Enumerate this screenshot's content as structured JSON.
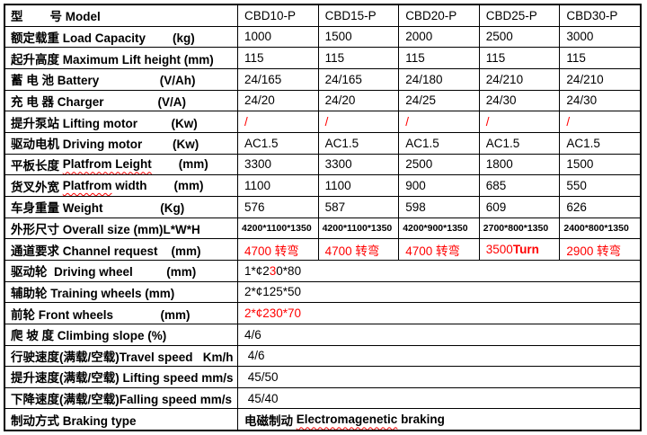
{
  "colors": {
    "red": "#ff0000",
    "text": "#000000",
    "border": "#000000",
    "background": "#ffffff"
  },
  "table": {
    "column_count": 6,
    "rows": [
      {
        "name": "model",
        "label": [
          {
            "t": "型        号 Model"
          }
        ],
        "cells": [
          {
            "parts": [
              {
                "t": "CBD10-P"
              }
            ]
          },
          {
            "parts": [
              {
                "t": "CBD15-P"
              }
            ]
          },
          {
            "parts": [
              {
                "t": "CBD20-P"
              }
            ]
          },
          {
            "parts": [
              {
                "t": "CBD25-P"
              }
            ]
          },
          {
            "parts": [
              {
                "t": "CBD30-P"
              }
            ]
          }
        ]
      },
      {
        "name": "load-capacity",
        "label": [
          {
            "t": "额定载重 Load Capacity        (kg)"
          }
        ],
        "cells": [
          {
            "parts": [
              {
                "t": "1000"
              }
            ]
          },
          {
            "parts": [
              {
                "t": "1500"
              }
            ]
          },
          {
            "parts": [
              {
                "t": "2000"
              }
            ]
          },
          {
            "parts": [
              {
                "t": "2500"
              }
            ]
          },
          {
            "parts": [
              {
                "t": "3000"
              }
            ]
          }
        ]
      },
      {
        "name": "max-lift-height",
        "label": [
          {
            "t": "起升高度 Maximum Lift height (mm)"
          }
        ],
        "cells": [
          {
            "parts": [
              {
                "t": "115"
              }
            ]
          },
          {
            "parts": [
              {
                "t": "115"
              }
            ]
          },
          {
            "parts": [
              {
                "t": "115"
              }
            ]
          },
          {
            "parts": [
              {
                "t": "115"
              }
            ]
          },
          {
            "parts": [
              {
                "t": "115"
              }
            ]
          }
        ]
      },
      {
        "name": "battery",
        "label": [
          {
            "t": "蓄 电 池 Battery                  (V/Ah)"
          }
        ],
        "cells": [
          {
            "parts": [
              {
                "t": "24/165"
              }
            ]
          },
          {
            "parts": [
              {
                "t": "24/165"
              }
            ]
          },
          {
            "parts": [
              {
                "t": "24/180"
              }
            ]
          },
          {
            "parts": [
              {
                "t": "24/210"
              }
            ]
          },
          {
            "parts": [
              {
                "t": "24/210"
              }
            ]
          }
        ]
      },
      {
        "name": "charger",
        "label": [
          {
            "t": "充 电 器 Charger                (V/A)"
          }
        ],
        "cells": [
          {
            "parts": [
              {
                "t": "24/20"
              }
            ]
          },
          {
            "parts": [
              {
                "t": "24/20"
              }
            ]
          },
          {
            "parts": [
              {
                "t": "24/25"
              }
            ]
          },
          {
            "parts": [
              {
                "t": "24/30"
              }
            ]
          },
          {
            "parts": [
              {
                "t": "24/30"
              }
            ]
          }
        ]
      },
      {
        "name": "lifting-motor",
        "label": [
          {
            "t": "提升泵站 Lifting motor          (Kw)"
          }
        ],
        "cells": [
          {
            "parts": [
              {
                "t": "/",
                "red": true
              }
            ]
          },
          {
            "parts": [
              {
                "t": "/",
                "red": true
              }
            ]
          },
          {
            "parts": [
              {
                "t": "/",
                "red": true
              }
            ]
          },
          {
            "parts": [
              {
                "t": "/",
                "red": true
              }
            ]
          },
          {
            "parts": [
              {
                "t": "/",
                "red": true
              }
            ]
          }
        ]
      },
      {
        "name": "driving-motor",
        "label": [
          {
            "t": "驱动电机 Driving motor         (Kw)"
          }
        ],
        "cells": [
          {
            "parts": [
              {
                "t": "AC1.5"
              }
            ]
          },
          {
            "parts": [
              {
                "t": "AC1.5"
              }
            ]
          },
          {
            "parts": [
              {
                "t": "AC1.5"
              }
            ]
          },
          {
            "parts": [
              {
                "t": "AC1.5"
              }
            ]
          },
          {
            "parts": [
              {
                "t": "AC1.5"
              }
            ]
          }
        ]
      },
      {
        "name": "platform-length",
        "label": [
          {
            "t": "平板长度 "
          },
          {
            "t": "Platfrom Leight",
            "wavy": true
          },
          {
            "t": "        (mm)"
          }
        ],
        "cells": [
          {
            "parts": [
              {
                "t": "3300"
              }
            ]
          },
          {
            "parts": [
              {
                "t": "3300"
              }
            ]
          },
          {
            "parts": [
              {
                "t": "2500"
              }
            ]
          },
          {
            "parts": [
              {
                "t": "1800"
              }
            ]
          },
          {
            "parts": [
              {
                "t": "1500"
              }
            ]
          }
        ]
      },
      {
        "name": "platform-width",
        "label": [
          {
            "t": "货叉外宽 "
          },
          {
            "t": "Platfrom",
            "wavy": true
          },
          {
            "t": " width        (mm)"
          }
        ],
        "cells": [
          {
            "parts": [
              {
                "t": "1100"
              }
            ]
          },
          {
            "parts": [
              {
                "t": "1100"
              }
            ]
          },
          {
            "parts": [
              {
                "t": "900"
              }
            ]
          },
          {
            "parts": [
              {
                "t": "685"
              }
            ]
          },
          {
            "parts": [
              {
                "t": "550"
              }
            ]
          }
        ]
      },
      {
        "name": "weight",
        "label": [
          {
            "t": "车身重量 Weight                 (Kg)"
          }
        ],
        "cells": [
          {
            "parts": [
              {
                "t": "576"
              }
            ]
          },
          {
            "parts": [
              {
                "t": "587"
              }
            ]
          },
          {
            "parts": [
              {
                "t": "598"
              }
            ]
          },
          {
            "parts": [
              {
                "t": "609"
              }
            ]
          },
          {
            "parts": [
              {
                "t": "626"
              }
            ]
          }
        ]
      },
      {
        "name": "overall-size",
        "label": [
          {
            "t": "外形尺寸 Overall size (mm)L*W*H"
          }
        ],
        "small": true,
        "cells": [
          {
            "parts": [
              {
                "t": "4200*1100*1350"
              }
            ]
          },
          {
            "parts": [
              {
                "t": "4200*1100*1350"
              }
            ]
          },
          {
            "parts": [
              {
                "t": "4200*900*1350"
              }
            ]
          },
          {
            "parts": [
              {
                "t": "2700*800*1350"
              }
            ]
          },
          {
            "parts": [
              {
                "t": "2400*800*1350"
              }
            ]
          }
        ]
      },
      {
        "name": "channel-request",
        "label": [
          {
            "t": "通道要求 Channel request    (mm)"
          }
        ],
        "cells": [
          {
            "parts": [
              {
                "t": "4700 转弯",
                "red": true
              }
            ]
          },
          {
            "parts": [
              {
                "t": "4700 转弯",
                "red": true
              }
            ]
          },
          {
            "parts": [
              {
                "t": "4700 转弯",
                "red": true
              }
            ]
          },
          {
            "parts": [
              {
                "t": "3500",
                "red": true
              },
              {
                "t": "Turn",
                "red": true,
                "bold": true
              }
            ]
          },
          {
            "parts": [
              {
                "t": "2900 转弯",
                "red": true
              }
            ]
          }
        ]
      },
      {
        "name": "driving-wheel",
        "label": [
          {
            "t": "驱动轮  Driving wheel          (mm)"
          }
        ],
        "cells": [
          {
            "span": 5,
            "parts": [
              {
                "t": "1*¢2"
              },
              {
                "t": "3",
                "red": true
              },
              {
                "t": "0*80"
              }
            ]
          }
        ]
      },
      {
        "name": "training-wheels",
        "label": [
          {
            "t": "辅助轮 Training wheels (mm)"
          }
        ],
        "cells": [
          {
            "span": 5,
            "parts": [
              {
                "t": "2*¢125*50"
              }
            ]
          }
        ]
      },
      {
        "name": "front-wheels",
        "label": [
          {
            "t": "前轮 Front wheels              (mm)"
          }
        ],
        "cells": [
          {
            "span": 5,
            "parts": [
              {
                "t": "2*¢230*70",
                "red": true
              }
            ]
          }
        ]
      },
      {
        "name": "climbing-slope",
        "label": [
          {
            "t": "爬 坡 度 Climbing slope (%)"
          }
        ],
        "cells": [
          {
            "span": 5,
            "parts": [
              {
                "t": "4/6"
              }
            ]
          }
        ]
      },
      {
        "name": "travel-speed",
        "label": [
          {
            "t": "行驶速度(满载/空载)Travel speed   Km/h"
          }
        ],
        "cells": [
          {
            "span": 5,
            "parts": [
              {
                "t": " 4/6"
              }
            ]
          }
        ]
      },
      {
        "name": "lifting-speed",
        "label": [
          {
            "t": "提升速度(满载/空载) Lifting speed mm/s"
          }
        ],
        "cells": [
          {
            "span": 5,
            "parts": [
              {
                "t": " 45/50"
              }
            ]
          }
        ]
      },
      {
        "name": "falling-speed",
        "label": [
          {
            "t": "下降速度(满载/空载)Falling speed mm/s"
          }
        ],
        "cells": [
          {
            "span": 5,
            "parts": [
              {
                "t": " 45/40"
              }
            ]
          }
        ]
      },
      {
        "name": "braking-type",
        "label": [
          {
            "t": "制动方式 Braking type"
          }
        ],
        "cells": [
          {
            "span": 5,
            "bold": true,
            "parts": [
              {
                "t": "电磁制动 "
              },
              {
                "t": "Electromagenetic",
                "wavy": true
              },
              {
                "t": " braking"
              }
            ]
          }
        ]
      }
    ]
  }
}
